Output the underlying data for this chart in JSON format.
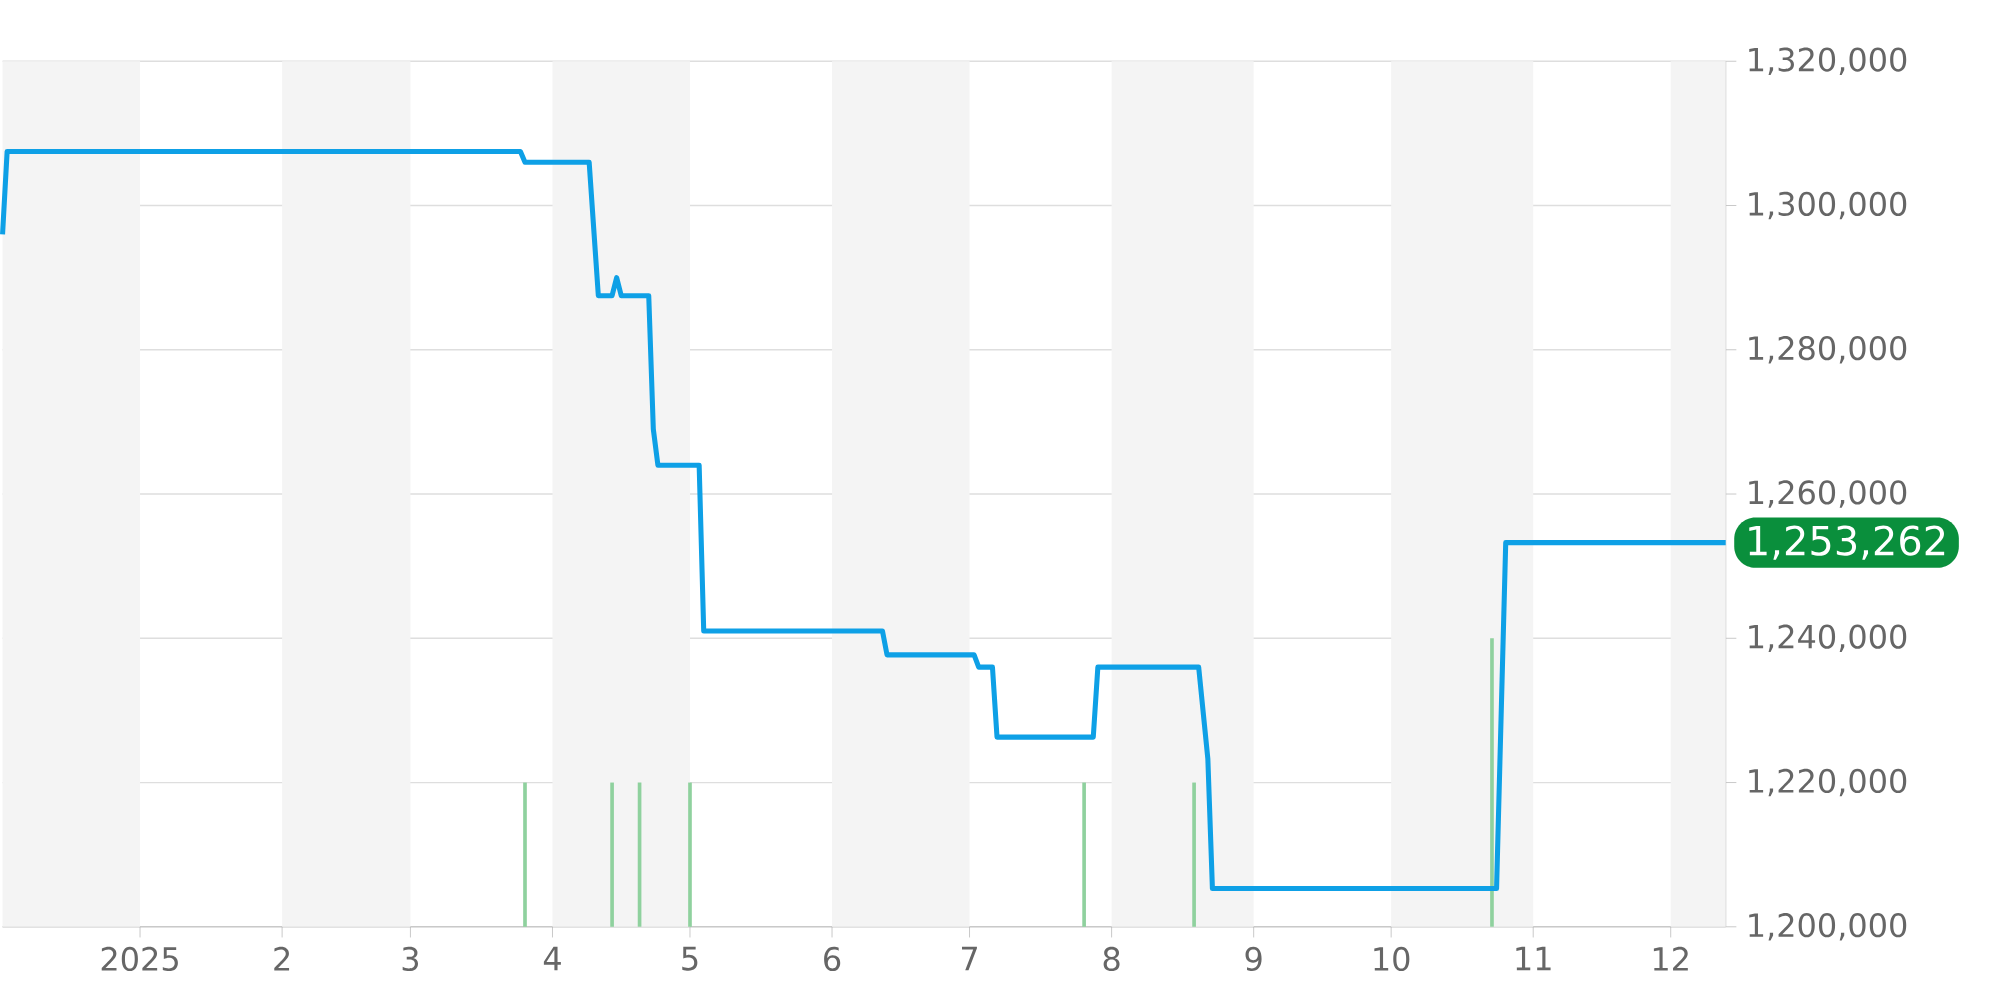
{
  "chart_data": {
    "type": "line",
    "xlim": [
      "2024-12-02",
      "2025-12-13"
    ],
    "ylim": [
      1200000,
      1320000
    ],
    "xticks": [
      {
        "value": "2025-01-01",
        "label": "2025"
      },
      {
        "value": "2025-02-01",
        "label": "2"
      },
      {
        "value": "2025-03-01",
        "label": "3"
      },
      {
        "value": "2025-04-01",
        "label": "4"
      },
      {
        "value": "2025-05-01",
        "label": "5"
      },
      {
        "value": "2025-06-01",
        "label": "6"
      },
      {
        "value": "2025-07-01",
        "label": "7"
      },
      {
        "value": "2025-08-01",
        "label": "8"
      },
      {
        "value": "2025-09-01",
        "label": "9"
      },
      {
        "value": "2025-10-01",
        "label": "10"
      },
      {
        "value": "2025-11-01",
        "label": "11"
      },
      {
        "value": "2025-12-01",
        "label": "12"
      }
    ],
    "yticks": [
      {
        "value": 1200000,
        "label": "1,200,000"
      },
      {
        "value": 1220000,
        "label": "1,220,000"
      },
      {
        "value": 1240000,
        "label": "1,240,000"
      },
      {
        "value": 1260000,
        "label": "1,260,000"
      },
      {
        "value": 1280000,
        "label": "1,280,000"
      },
      {
        "value": 1300000,
        "label": "1,300,000"
      },
      {
        "value": 1320000,
        "label": "1,320,000"
      }
    ],
    "grid": "y",
    "marker": "none",
    "series": [
      {
        "color": "#0ea0e6",
        "x": [
          "2024-12-02",
          "2024-12-03",
          "2025-03-13",
          "2025-03-25",
          "2025-03-26",
          "2025-04-09",
          "2025-04-11",
          "2025-04-14",
          "2025-04-15",
          "2025-04-16",
          "2025-04-22",
          "2025-04-23",
          "2025-04-24",
          "2025-05-03",
          "2025-05-04",
          "2025-06-12",
          "2025-06-13",
          "2025-07-02",
          "2025-07-03",
          "2025-07-06",
          "2025-07-07",
          "2025-07-28",
          "2025-07-29",
          "2025-08-20",
          "2025-08-22",
          "2025-08-23",
          "2025-10-24",
          "2025-10-26",
          "2025-12-13"
        ],
        "values": [
          1296000,
          1307500,
          1307500,
          1307500,
          1306000,
          1306000,
          1287500,
          1287500,
          1290000,
          1287500,
          1287500,
          1269000,
          1264000,
          1264000,
          1241000,
          1241000,
          1237700,
          1237700,
          1236000,
          1236000,
          1226300,
          1226300,
          1236000,
          1236000,
          1223300,
          1205300,
          1205300,
          1253262,
          1253262
        ]
      },
      {
        "type": "bar",
        "color": "#8fd19e",
        "x": [
          "2025-03-26",
          "2025-04-14",
          "2025-04-20",
          "2025-05-01",
          "2025-07-26",
          "2025-08-19",
          "2025-10-23"
        ],
        "values": [
          1220000,
          1220000,
          1220000,
          1220000,
          1220000,
          1220000,
          1240000
        ]
      }
    ],
    "bands": [
      {
        "axis": "x",
        "from": "2024-12-02",
        "to": "2025-01-01",
        "color": "#f4f4f4"
      },
      {
        "axis": "x",
        "from": "2025-02-01",
        "to": "2025-03-01",
        "color": "#f4f4f4"
      },
      {
        "axis": "x",
        "from": "2025-04-01",
        "to": "2025-05-01",
        "color": "#f4f4f4"
      },
      {
        "axis": "x",
        "from": "2025-06-01",
        "to": "2025-07-01",
        "color": "#f4f4f4"
      },
      {
        "axis": "x",
        "from": "2025-08-01",
        "to": "2025-09-01",
        "color": "#f4f4f4"
      },
      {
        "axis": "x",
        "from": "2025-10-01",
        "to": "2025-11-01",
        "color": "#f4f4f4"
      },
      {
        "axis": "x",
        "from": "2025-12-01",
        "to": "2025-12-13",
        "color": "#f4f4f4"
      }
    ],
    "annotations": [
      {
        "text": "1,253,262",
        "x": "2025-12-13",
        "y": 1253262
      }
    ]
  }
}
